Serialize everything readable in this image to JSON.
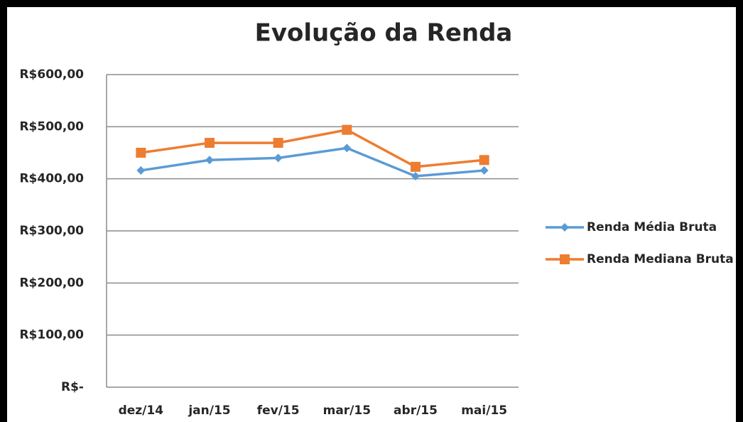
{
  "chart_data": {
    "type": "line",
    "title": "Evolução da Renda",
    "categories": [
      "dez/14",
      "jan/15",
      "fev/15",
      "mar/15",
      "abr/15",
      "mai/15"
    ],
    "series": [
      {
        "name": "Renda Média Bruta",
        "color": "#5b9bd5",
        "marker": "diamond",
        "values": [
          416,
          436,
          440,
          459,
          405,
          416
        ]
      },
      {
        "name": "Renda Mediana Bruta",
        "color": "#ed7d31",
        "marker": "square",
        "values": [
          450,
          469,
          469,
          494,
          423,
          436
        ]
      }
    ],
    "ylim": [
      0,
      600
    ],
    "yticks": [
      {
        "value": 0,
        "label": "R$-"
      },
      {
        "value": 100,
        "label": "R$100,00"
      },
      {
        "value": 200,
        "label": "R$200,00"
      },
      {
        "value": 300,
        "label": "R$300,00"
      },
      {
        "value": 400,
        "label": "R$400,00"
      },
      {
        "value": 500,
        "label": "R$500,00"
      },
      {
        "value": 600,
        "label": "R$600,00"
      }
    ],
    "grid": true,
    "legend": "right"
  }
}
